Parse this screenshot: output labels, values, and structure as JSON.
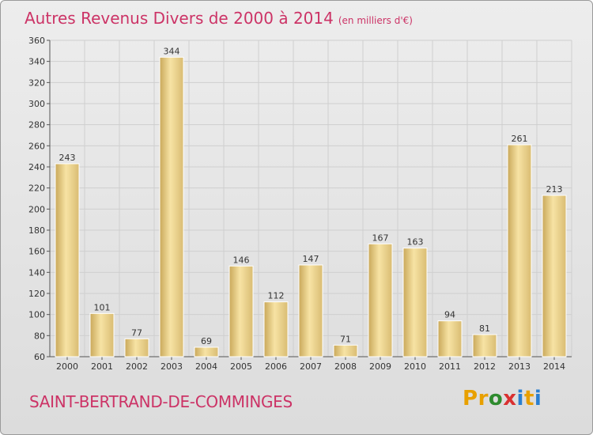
{
  "title": {
    "main": "Autres Revenus Divers de 2000 à 2014",
    "sub": "(en milliers d'€)"
  },
  "location": "SAINT-BERTRAND-DE-COMMINGES",
  "brand": {
    "name": "Proxiti",
    "colors": [
      "#e8a000",
      "#e8a000",
      "#2e8b2e",
      "#d93030",
      "#2a7fd0",
      "#e8a000",
      "#2a7fd0"
    ]
  },
  "colors": {
    "title": "#cc3366",
    "bar_light": "#f7e3a4",
    "bar_dark": "#c9a85a",
    "grid": "#cfcfcf"
  },
  "chart_data": {
    "type": "bar",
    "categories": [
      "2000",
      "2001",
      "2002",
      "2003",
      "2004",
      "2005",
      "2006",
      "2007",
      "2008",
      "2009",
      "2010",
      "2011",
      "2012",
      "2013",
      "2014"
    ],
    "values": [
      243,
      101,
      77,
      344,
      69,
      146,
      112,
      147,
      71,
      167,
      163,
      94,
      81,
      261,
      213
    ],
    "ylim": [
      60,
      360
    ],
    "yticks": [
      60,
      80,
      100,
      120,
      140,
      160,
      180,
      200,
      220,
      240,
      260,
      280,
      300,
      320,
      340,
      360
    ],
    "grid": true,
    "xlabel": "",
    "ylabel": ""
  }
}
